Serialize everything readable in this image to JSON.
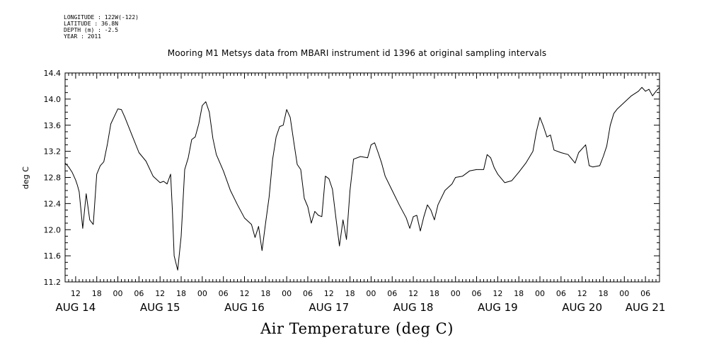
{
  "header": {
    "longitude": "LONGITUDE : 122W(-122)",
    "latitude": "LATITUDE : 36.8N",
    "depth": "DEPTH (m) : -2.5",
    "year": "YEAR : 2011"
  },
  "chart_data": {
    "type": "line",
    "title": "Mooring M1 Metsys data from MBARI instrument id 1396 at original sampling intervals",
    "xlabel": "Air Temperature (deg C)",
    "ylabel": "deg C",
    "ylim": [
      11.2,
      14.4
    ],
    "yticks": [
      11.2,
      11.6,
      12.0,
      12.4,
      12.8,
      13.2,
      13.6,
      14.0,
      14.4
    ],
    "ytick_labels": [
      "11.2",
      "11.6",
      "12.0",
      "12.4",
      "12.8",
      "13.2",
      "13.6",
      "14.0",
      "14.4"
    ],
    "xlim": [
      "2011-08-14 09:00",
      "2011-08-21 10:00"
    ],
    "x_hour_labels": [
      {
        "x": "2011-08-14 12:00",
        "label": "12"
      },
      {
        "x": "2011-08-14 18:00",
        "label": "18"
      },
      {
        "x": "2011-08-15 00:00",
        "label": "00"
      },
      {
        "x": "2011-08-15 06:00",
        "label": "06"
      },
      {
        "x": "2011-08-15 12:00",
        "label": "12"
      },
      {
        "x": "2011-08-15 18:00",
        "label": "18"
      },
      {
        "x": "2011-08-16 00:00",
        "label": "00"
      },
      {
        "x": "2011-08-16 06:00",
        "label": "06"
      },
      {
        "x": "2011-08-16 12:00",
        "label": "12"
      },
      {
        "x": "2011-08-16 18:00",
        "label": "18"
      },
      {
        "x": "2011-08-17 00:00",
        "label": "00"
      },
      {
        "x": "2011-08-17 06:00",
        "label": "06"
      },
      {
        "x": "2011-08-17 12:00",
        "label": "12"
      },
      {
        "x": "2011-08-17 18:00",
        "label": "18"
      },
      {
        "x": "2011-08-18 00:00",
        "label": "00"
      },
      {
        "x": "2011-08-18 06:00",
        "label": "06"
      },
      {
        "x": "2011-08-18 12:00",
        "label": "12"
      },
      {
        "x": "2011-08-18 18:00",
        "label": "18"
      },
      {
        "x": "2011-08-19 00:00",
        "label": "00"
      },
      {
        "x": "2011-08-19 06:00",
        "label": "06"
      },
      {
        "x": "2011-08-19 12:00",
        "label": "12"
      },
      {
        "x": "2011-08-19 18:00",
        "label": "18"
      },
      {
        "x": "2011-08-20 00:00",
        "label": "00"
      },
      {
        "x": "2011-08-20 06:00",
        "label": "06"
      },
      {
        "x": "2011-08-20 12:00",
        "label": "12"
      },
      {
        "x": "2011-08-20 18:00",
        "label": "18"
      },
      {
        "x": "2011-08-21 00:00",
        "label": "00"
      },
      {
        "x": "2011-08-21 06:00",
        "label": "06"
      }
    ],
    "x_day_labels": [
      {
        "x": "2011-08-14 12:00",
        "label": "AUG 14"
      },
      {
        "x": "2011-08-15 12:00",
        "label": "AUG 15"
      },
      {
        "x": "2011-08-16 12:00",
        "label": "AUG 16"
      },
      {
        "x": "2011-08-17 12:00",
        "label": "AUG 17"
      },
      {
        "x": "2011-08-18 12:00",
        "label": "AUG 18"
      },
      {
        "x": "2011-08-19 12:00",
        "label": "AUG 19"
      },
      {
        "x": "2011-08-20 12:00",
        "label": "AUG 20"
      },
      {
        "x": "2011-08-21 06:00",
        "label": "AUG 21"
      }
    ],
    "grid": false,
    "series": [
      {
        "color": "#000000",
        "points": [
          [
            "2011-08-14 09:00",
            13.02
          ],
          [
            "2011-08-14 10:00",
            12.96
          ],
          [
            "2011-08-14 11:00",
            12.88
          ],
          [
            "2011-08-14 12:00",
            12.76
          ],
          [
            "2011-08-14 12:30",
            12.68
          ],
          [
            "2011-08-14 13:00",
            12.58
          ],
          [
            "2011-08-14 14:00",
            12.02
          ],
          [
            "2011-08-14 15:00",
            12.55
          ],
          [
            "2011-08-14 16:00",
            12.15
          ],
          [
            "2011-08-14 17:00",
            12.08
          ],
          [
            "2011-08-14 18:00",
            12.85
          ],
          [
            "2011-08-14 19:00",
            12.98
          ],
          [
            "2011-08-14 20:00",
            13.04
          ],
          [
            "2011-08-14 21:00",
            13.3
          ],
          [
            "2011-08-14 22:00",
            13.62
          ],
          [
            "2011-08-15 00:00",
            13.85
          ],
          [
            "2011-08-15 01:00",
            13.84
          ],
          [
            "2011-08-15 02:00",
            13.72
          ],
          [
            "2011-08-15 04:00",
            13.45
          ],
          [
            "2011-08-15 06:00",
            13.18
          ],
          [
            "2011-08-15 08:00",
            13.05
          ],
          [
            "2011-08-15 10:00",
            12.82
          ],
          [
            "2011-08-15 12:00",
            12.72
          ],
          [
            "2011-08-15 13:00",
            12.74
          ],
          [
            "2011-08-15 14:00",
            12.7
          ],
          [
            "2011-08-15 15:00",
            12.85
          ],
          [
            "2011-08-15 15:30",
            12.3
          ],
          [
            "2011-08-15 16:00",
            11.6
          ],
          [
            "2011-08-15 17:00",
            11.38
          ],
          [
            "2011-08-15 18:00",
            11.9
          ],
          [
            "2011-08-15 19:00",
            12.92
          ],
          [
            "2011-08-15 20:00",
            13.1
          ],
          [
            "2011-08-15 21:00",
            13.38
          ],
          [
            "2011-08-15 22:00",
            13.42
          ],
          [
            "2011-08-15 23:00",
            13.62
          ],
          [
            "2011-08-16 00:00",
            13.9
          ],
          [
            "2011-08-16 01:00",
            13.96
          ],
          [
            "2011-08-16 02:00",
            13.8
          ],
          [
            "2011-08-16 03:00",
            13.4
          ],
          [
            "2011-08-16 04:00",
            13.15
          ],
          [
            "2011-08-16 06:00",
            12.9
          ],
          [
            "2011-08-16 08:00",
            12.6
          ],
          [
            "2011-08-16 10:00",
            12.38
          ],
          [
            "2011-08-16 12:00",
            12.18
          ],
          [
            "2011-08-16 14:00",
            12.08
          ],
          [
            "2011-08-16 15:00",
            11.88
          ],
          [
            "2011-08-16 16:00",
            12.05
          ],
          [
            "2011-08-16 17:00",
            11.68
          ],
          [
            "2011-08-16 18:00",
            12.1
          ],
          [
            "2011-08-16 19:00",
            12.5
          ],
          [
            "2011-08-16 20:00",
            13.08
          ],
          [
            "2011-08-16 21:00",
            13.42
          ],
          [
            "2011-08-16 22:00",
            13.58
          ],
          [
            "2011-08-16 23:00",
            13.6
          ],
          [
            "2011-08-17 00:00",
            13.84
          ],
          [
            "2011-08-17 01:00",
            13.72
          ],
          [
            "2011-08-17 02:00",
            13.35
          ],
          [
            "2011-08-17 03:00",
            13.0
          ],
          [
            "2011-08-17 04:00",
            12.92
          ],
          [
            "2011-08-17 05:00",
            12.48
          ],
          [
            "2011-08-17 06:00",
            12.35
          ],
          [
            "2011-08-17 07:00",
            12.1
          ],
          [
            "2011-08-17 08:00",
            12.28
          ],
          [
            "2011-08-17 09:00",
            12.22
          ],
          [
            "2011-08-17 10:00",
            12.2
          ],
          [
            "2011-08-17 11:00",
            12.82
          ],
          [
            "2011-08-17 12:00",
            12.78
          ],
          [
            "2011-08-17 13:00",
            12.62
          ],
          [
            "2011-08-17 14:00",
            12.18
          ],
          [
            "2011-08-17 15:00",
            11.75
          ],
          [
            "2011-08-17 16:00",
            12.15
          ],
          [
            "2011-08-17 17:00",
            11.85
          ],
          [
            "2011-08-17 18:00",
            12.6
          ],
          [
            "2011-08-17 19:00",
            13.08
          ],
          [
            "2011-08-17 21:00",
            13.12
          ],
          [
            "2011-08-17 23:00",
            13.1
          ],
          [
            "2011-08-18 00:00",
            13.3
          ],
          [
            "2011-08-18 01:00",
            13.33
          ],
          [
            "2011-08-18 02:00",
            13.18
          ],
          [
            "2011-08-18 03:00",
            13.02
          ],
          [
            "2011-08-18 04:00",
            12.82
          ],
          [
            "2011-08-18 06:00",
            12.6
          ],
          [
            "2011-08-18 08:00",
            12.38
          ],
          [
            "2011-08-18 10:00",
            12.18
          ],
          [
            "2011-08-18 11:00",
            12.02
          ],
          [
            "2011-08-18 12:00",
            12.2
          ],
          [
            "2011-08-18 13:00",
            12.22
          ],
          [
            "2011-08-18 14:00",
            11.98
          ],
          [
            "2011-08-18 15:00",
            12.2
          ],
          [
            "2011-08-18 16:00",
            12.38
          ],
          [
            "2011-08-18 17:00",
            12.3
          ],
          [
            "2011-08-18 18:00",
            12.15
          ],
          [
            "2011-08-18 19:00",
            12.38
          ],
          [
            "2011-08-18 21:00",
            12.6
          ],
          [
            "2011-08-18 23:00",
            12.7
          ],
          [
            "2011-08-19 00:00",
            12.8
          ],
          [
            "2011-08-19 02:00",
            12.82
          ],
          [
            "2011-08-19 04:00",
            12.9
          ],
          [
            "2011-08-19 06:00",
            12.92
          ],
          [
            "2011-08-19 08:00",
            12.92
          ],
          [
            "2011-08-19 09:00",
            13.15
          ],
          [
            "2011-08-19 10:00",
            13.1
          ],
          [
            "2011-08-19 11:00",
            12.95
          ],
          [
            "2011-08-19 12:00",
            12.85
          ],
          [
            "2011-08-19 14:00",
            12.72
          ],
          [
            "2011-08-19 16:00",
            12.75
          ],
          [
            "2011-08-19 18:00",
            12.88
          ],
          [
            "2011-08-19 20:00",
            13.02
          ],
          [
            "2011-08-19 22:00",
            13.2
          ],
          [
            "2011-08-19 23:00",
            13.5
          ],
          [
            "2011-08-20 00:00",
            13.72
          ],
          [
            "2011-08-20 01:00",
            13.58
          ],
          [
            "2011-08-20 02:00",
            13.42
          ],
          [
            "2011-08-20 03:00",
            13.45
          ],
          [
            "2011-08-20 04:00",
            13.22
          ],
          [
            "2011-08-20 06:00",
            13.18
          ],
          [
            "2011-08-20 08:00",
            13.15
          ],
          [
            "2011-08-20 10:00",
            13.02
          ],
          [
            "2011-08-20 11:00",
            13.18
          ],
          [
            "2011-08-20 13:00",
            13.3
          ],
          [
            "2011-08-20 14:00",
            12.98
          ],
          [
            "2011-08-20 15:00",
            12.96
          ],
          [
            "2011-08-20 17:00",
            12.98
          ],
          [
            "2011-08-20 18:00",
            13.12
          ],
          [
            "2011-08-20 19:00",
            13.28
          ],
          [
            "2011-08-20 20:00",
            13.6
          ],
          [
            "2011-08-20 21:00",
            13.78
          ],
          [
            "2011-08-20 22:00",
            13.85
          ],
          [
            "2011-08-21 00:00",
            13.95
          ],
          [
            "2011-08-21 02:00",
            14.05
          ],
          [
            "2011-08-21 04:00",
            14.12
          ],
          [
            "2011-08-21 05:00",
            14.18
          ],
          [
            "2011-08-21 06:00",
            14.12
          ],
          [
            "2011-08-21 07:00",
            14.15
          ],
          [
            "2011-08-21 08:00",
            14.05
          ],
          [
            "2011-08-21 09:00",
            14.12
          ],
          [
            "2011-08-21 10:00",
            14.18
          ]
        ]
      }
    ]
  }
}
